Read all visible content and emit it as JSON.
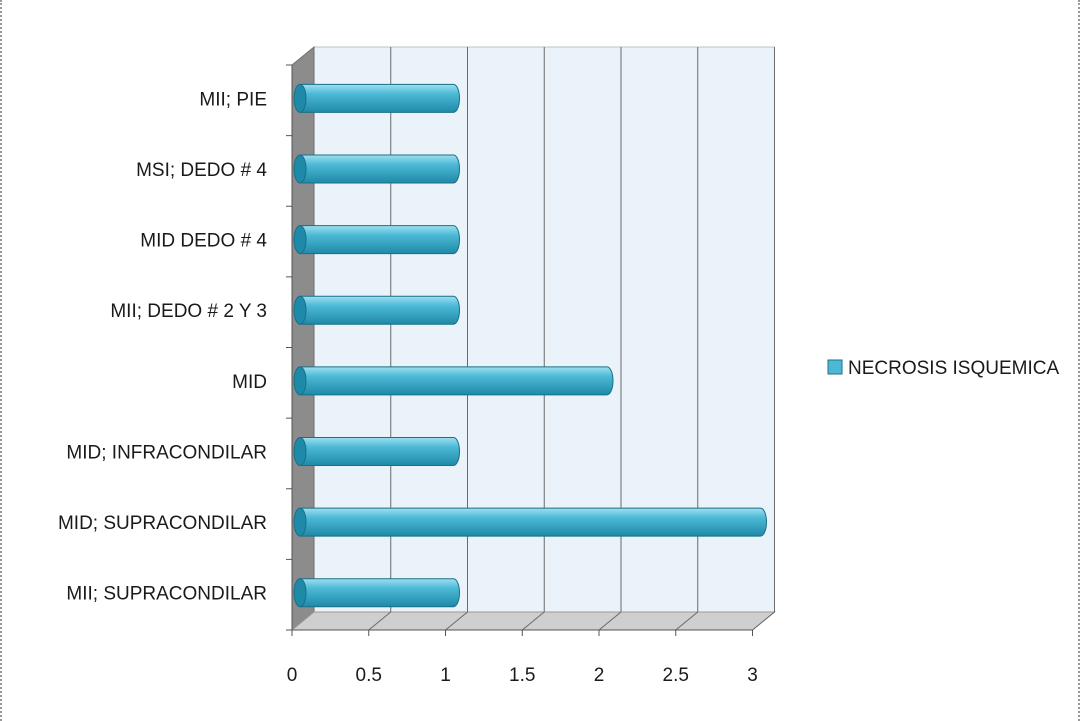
{
  "chart_data": {
    "type": "bar",
    "orientation": "horizontal",
    "style": "3d-cylinder",
    "categories": [
      "MII; SUPRACONDILAR",
      "MID; SUPRACONDILAR",
      "MID; INFRACONDILAR",
      "MID",
      "MII; DEDO # 2 Y 3",
      "MID DEDO # 4",
      "MSI; DEDO # 4",
      "MII; PIE"
    ],
    "series": [
      {
        "name": "NECROSIS ISQUEMICA",
        "values": [
          1,
          3,
          1,
          2,
          1,
          1,
          1,
          1
        ]
      }
    ],
    "title": "",
    "xlabel": "",
    "ylabel": "",
    "xlim": [
      0,
      3
    ],
    "x_ticks": [
      0,
      0.5,
      1,
      1.5,
      2,
      2.5,
      3
    ],
    "x_tick_labels": [
      "0",
      "0.5",
      "1",
      "1.5",
      "2",
      "2.5",
      "3"
    ],
    "grid": true,
    "legend": "right"
  },
  "colors": {
    "bar": "#4bb8d6",
    "bar_dark": "#1f8aa8",
    "bar_light": "#9fe0f0",
    "plot_wall": "#eaf3f9",
    "side_wall": "#8c8c8c",
    "floor": "#cfcfcf",
    "grid": "#6a6a6a"
  }
}
